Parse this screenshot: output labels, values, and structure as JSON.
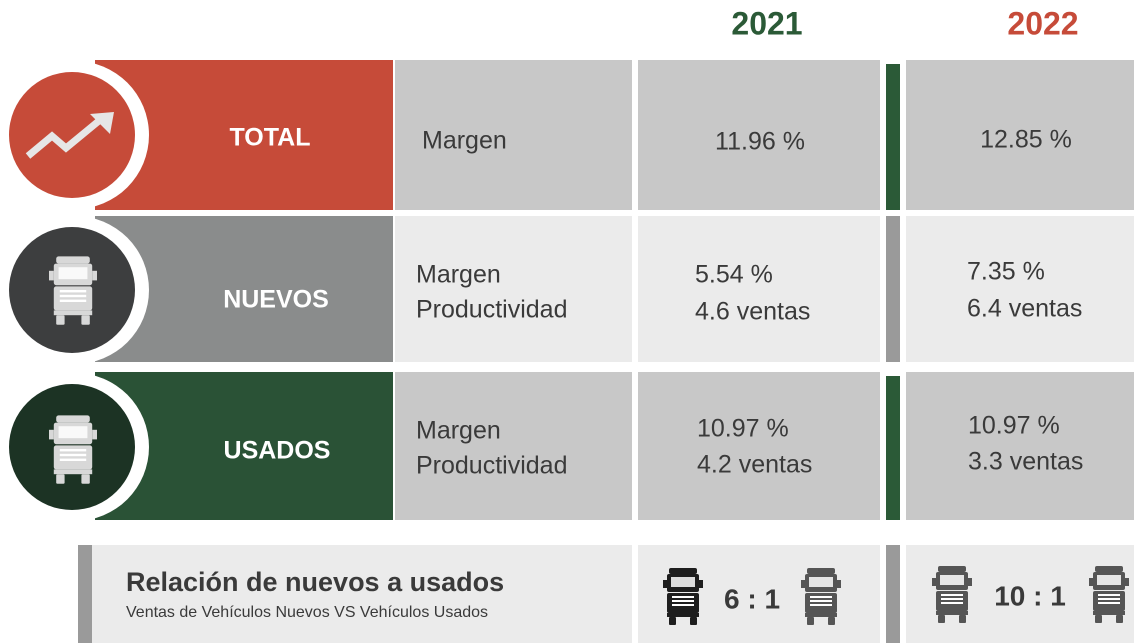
{
  "header": {
    "years": [
      "2021",
      "2022"
    ]
  },
  "rows": [
    {
      "label": "TOTAL",
      "metrics": [
        "Margen"
      ],
      "values_2021": [
        "11.96 %"
      ],
      "values_2022": [
        "12.85 %"
      ]
    },
    {
      "label": "NUEVOS",
      "metrics": [
        "Margen",
        "Productividad"
      ],
      "values_2021": [
        "5.54 %",
        "4.6 ventas"
      ],
      "values_2022": [
        "7.35 %",
        "6.4 ventas"
      ]
    },
    {
      "label": "USADOS",
      "metrics": [
        "Margen",
        "Productividad"
      ],
      "values_2021": [
        "10.97 %",
        "4.2 ventas"
      ],
      "values_2022": [
        "10.97 %",
        "3.3 ventas"
      ]
    }
  ],
  "ratio": {
    "title": "Relación de nuevos a usados",
    "subtitle": "Ventas de Vehículos Nuevos VS Vehículos Usados",
    "value_2021": "6 : 1",
    "value_2022": "10 : 1"
  }
}
